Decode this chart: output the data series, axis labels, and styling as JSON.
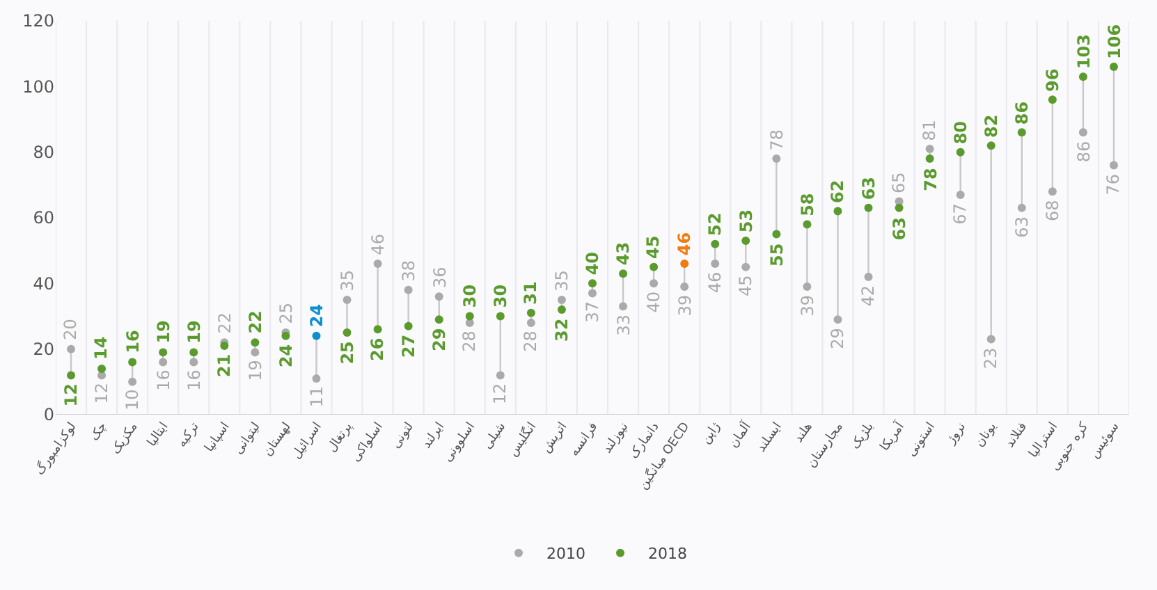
{
  "chart_data": {
    "type": "scatter",
    "categories": [
      "لوکزامبورگ",
      "چک",
      "مکزیک",
      "ایتالیا",
      "ترکیه",
      "اسپانیا",
      "لیتوانی",
      "لهستان",
      "اسرائیل",
      "پرتغال",
      "اسلواکی",
      "لتونی",
      "ایرلند",
      "اسلوونی",
      "شیلی",
      "انگلیس",
      "اتریش",
      "فرانسه",
      "نیوزلند",
      "دانمارک",
      "میانگین OECD",
      "ژاپن",
      "آلمان",
      "ایسلند",
      "هلند",
      "مجارستان",
      "بلژیک",
      "آمریکا",
      "استونی",
      "نروژ",
      "یونان",
      "فنلاند",
      "استرالیا",
      "کره جنوبی",
      "سوئیس"
    ],
    "series": [
      {
        "name": "2010",
        "color": "#aaaaaa",
        "values": [
          20,
          12,
          10,
          16,
          16,
          22,
          19,
          25,
          11,
          35,
          46,
          38,
          36,
          28,
          12,
          28,
          35,
          37,
          33,
          40,
          39,
          46,
          45,
          78,
          39,
          29,
          42,
          65,
          81,
          67,
          23,
          63,
          68,
          86,
          76
        ]
      },
      {
        "name": "2018",
        "color": "#5b9b2e",
        "colors": [
          "#5b9b2e",
          "#5b9b2e",
          "#5b9b2e",
          "#5b9b2e",
          "#5b9b2e",
          "#5b9b2e",
          "#5b9b2e",
          "#5b9b2e",
          "#0e8fd0",
          "#5b9b2e",
          "#5b9b2e",
          "#5b9b2e",
          "#5b9b2e",
          "#5b9b2e",
          "#5b9b2e",
          "#5b9b2e",
          "#5b9b2e",
          "#5b9b2e",
          "#5b9b2e",
          "#5b9b2e",
          "#f07c10",
          "#5b9b2e",
          "#5b9b2e",
          "#5b9b2e",
          "#5b9b2e",
          "#5b9b2e",
          "#5b9b2e",
          "#5b9b2e",
          "#5b9b2e",
          "#5b9b2e",
          "#5b9b2e",
          "#5b9b2e",
          "#5b9b2e",
          "#5b9b2e",
          "#5b9b2e"
        ],
        "values": [
          12,
          14,
          16,
          19,
          19,
          21,
          22,
          24,
          24,
          25,
          26,
          27,
          29,
          30,
          30,
          31,
          32,
          40,
          43,
          45,
          46,
          52,
          53,
          55,
          58,
          62,
          63,
          63,
          78,
          80,
          82,
          86,
          96,
          103,
          106
        ]
      }
    ],
    "ylim": [
      0,
      120
    ],
    "yticks": [
      0,
      20,
      40,
      60,
      80,
      100,
      120
    ],
    "grid": "x",
    "legend": "bottom",
    "marker": "circle",
    "data_labels": true
  }
}
